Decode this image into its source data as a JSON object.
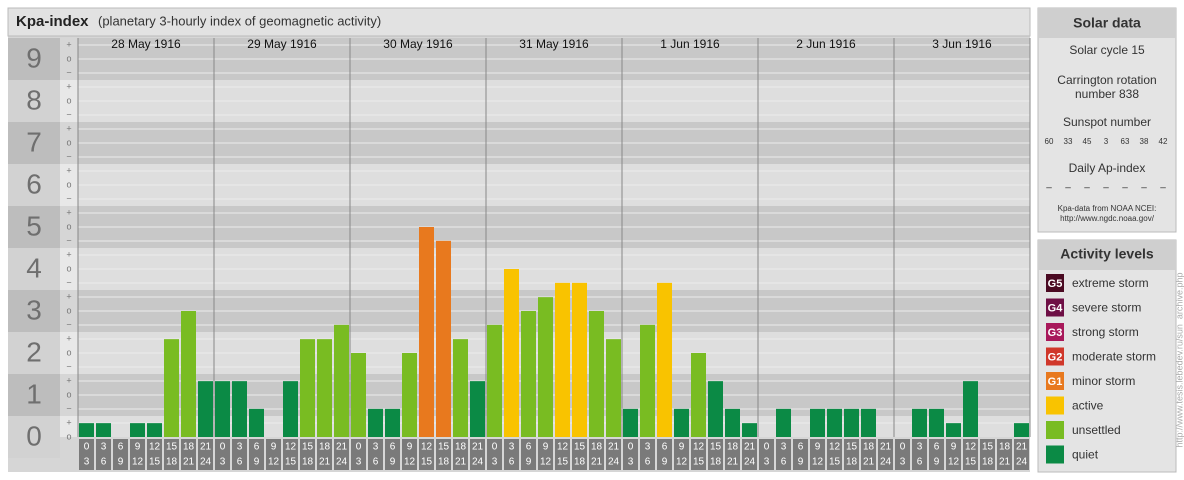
{
  "chart_data": {
    "type": "bar",
    "title": "Kpa-index",
    "subtitle": "(planetary 3-hourly index of geomagnetic activity)",
    "ylim": [
      0,
      9.5
    ],
    "yticks": [
      0,
      1,
      2,
      3,
      4,
      5,
      6,
      7,
      8,
      9
    ],
    "yminor_labels": [
      "−",
      "o",
      "+"
    ],
    "hour_ranges": [
      [
        0,
        3
      ],
      [
        3,
        6
      ],
      [
        6,
        9
      ],
      [
        9,
        12
      ],
      [
        12,
        15
      ],
      [
        15,
        18
      ],
      [
        18,
        21
      ],
      [
        21,
        24
      ]
    ],
    "series": [
      {
        "name": "28 May 1916",
        "values": [
          0.33,
          0.33,
          0,
          0.33,
          0.33,
          2.33,
          3,
          1.33
        ],
        "colors": [
          "#0b8a45",
          "#0b8a45",
          "#0b8a45",
          "#0b8a45",
          "#0b8a45",
          "#79bc22",
          "#79bc22",
          "#0b8a45"
        ]
      },
      {
        "name": "29 May 1916",
        "values": [
          1.33,
          1.33,
          0.67,
          0,
          1.33,
          2.33,
          2.33,
          2.67
        ],
        "colors": [
          "#0b8a45",
          "#0b8a45",
          "#0b8a45",
          "#0b8a45",
          "#0b8a45",
          "#79bc22",
          "#79bc22",
          "#79bc22"
        ]
      },
      {
        "name": "30 May 1916",
        "values": [
          2,
          0.67,
          0.67,
          2,
          5,
          4.67,
          2.33,
          1.33
        ],
        "colors": [
          "#79bc22",
          "#0b8a45",
          "#0b8a45",
          "#79bc22",
          "#e8791e",
          "#e8791e",
          "#79bc22",
          "#0b8a45"
        ]
      },
      {
        "name": "31 May 1916",
        "values": [
          2.67,
          4,
          3,
          3.33,
          3.67,
          3.67,
          3,
          2.33
        ],
        "colors": [
          "#79bc22",
          "#f9c300",
          "#79bc22",
          "#79bc22",
          "#f9c300",
          "#f9c300",
          "#79bc22",
          "#79bc22"
        ]
      },
      {
        "name": "1 Jun 1916",
        "values": [
          0.67,
          2.67,
          3.67,
          0.67,
          2,
          1.33,
          0.67,
          0.33
        ],
        "colors": [
          "#0b8a45",
          "#79bc22",
          "#f9c300",
          "#0b8a45",
          "#79bc22",
          "#0b8a45",
          "#0b8a45",
          "#0b8a45"
        ]
      },
      {
        "name": "2 Jun 1916",
        "values": [
          0,
          0.67,
          0,
          0.67,
          0.67,
          0.67,
          0.67,
          0
        ],
        "colors": [
          "#0b8a45",
          "#0b8a45",
          "#0b8a45",
          "#0b8a45",
          "#0b8a45",
          "#0b8a45",
          "#0b8a45",
          "#0b8a45"
        ]
      },
      {
        "name": "3 Jun 1916",
        "values": [
          0,
          0.67,
          0.67,
          0.33,
          1.33,
          0,
          0,
          0.33
        ],
        "colors": [
          "#0b8a45",
          "#0b8a45",
          "#0b8a45",
          "#0b8a45",
          "#0b8a45",
          "#0b8a45",
          "#0b8a45",
          "#0b8a45"
        ]
      }
    ]
  },
  "solar_data": {
    "title": "Solar data",
    "solar_cycle": "Solar cycle 15",
    "carrington": [
      "Carrington rotation",
      "number 838"
    ],
    "sunspot_title": "Sunspot number",
    "sunspot_numbers": [
      60,
      33,
      45,
      3,
      63,
      38,
      42
    ],
    "ap_title": "Daily Ap-index",
    "ap_values": [
      "–",
      "–",
      "–",
      "–",
      "–",
      "–",
      "–"
    ],
    "note_source": "Kpa-data from NOAA NCEI:",
    "note_url": "http://www.ngdc.noaa.gov/"
  },
  "activity_levels": {
    "title": "Activity levels",
    "items": [
      {
        "code": "G5",
        "name": "extreme storm",
        "color": "#4a0a22"
      },
      {
        "code": "G4",
        "name": "severe storm",
        "color": "#6e0f45"
      },
      {
        "code": "G3",
        "name": "strong storm",
        "color": "#a8185a"
      },
      {
        "code": "G2",
        "name": "moderate storm",
        "color": "#d0372a"
      },
      {
        "code": "G1",
        "name": "minor storm",
        "color": "#e8791e"
      },
      {
        "code": null,
        "name": "active",
        "color": "#f9c300"
      },
      {
        "code": null,
        "name": "unsettled",
        "color": "#79bc22"
      },
      {
        "code": null,
        "name": "quiet",
        "color": "#0b8a45"
      }
    ]
  },
  "watermark": "http://www.tesis.lebedev.ru/sun_archive.php"
}
